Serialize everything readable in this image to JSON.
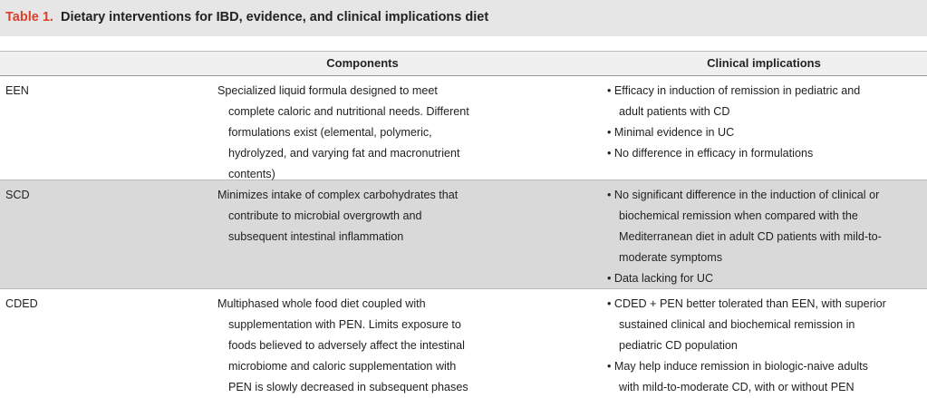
{
  "table": {
    "label": "Table 1.",
    "title": "Dietary interventions for IBD, evidence, and clinical implications diet",
    "headers": [
      "Components",
      "Clinical implications"
    ],
    "rows": [
      {
        "name": "EEN",
        "components": [
          "Specialized liquid formula designed to meet",
          "complete caloric and nutritional needs. Different",
          "formulations exist (elemental, polymeric,",
          "hydrolyzed, and varying fat and macronutrient",
          "contents)"
        ],
        "implications": [
          [
            "• Efficacy in induction of remission in pediatric and",
            "adult patients with CD"
          ],
          [
            "• Minimal evidence in UC"
          ],
          [
            "• No difference in efficacy in formulations"
          ]
        ]
      },
      {
        "name": "SCD",
        "components": [
          "Minimizes intake of complex carbohydrates that",
          "contribute to microbial overgrowth and",
          "subsequent intestinal inflammation"
        ],
        "implications": [
          [
            "• No significant difference in the induction of clinical or",
            "biochemical remission when compared with the",
            "Mediterranean diet in adult CD patients with mild-to-",
            "moderate symptoms"
          ],
          [
            "• Data lacking for UC"
          ]
        ]
      },
      {
        "name": "CDED",
        "components": [
          "Multiphased whole food diet coupled with",
          "supplementation with PEN. Limits exposure to",
          "foods believed to adversely affect the intestinal",
          "microbiome and caloric supplementation with",
          "PEN is slowly decreased in subsequent phases"
        ],
        "implications": [
          [
            "• CDED + PEN better tolerated than EEN, with superior",
            "sustained clinical and biochemical remission in",
            "pediatric CD population"
          ],
          [
            "• May help induce remission in biologic-naive adults",
            "with mild-to-moderate CD, with or without PEN"
          ]
        ]
      }
    ]
  }
}
